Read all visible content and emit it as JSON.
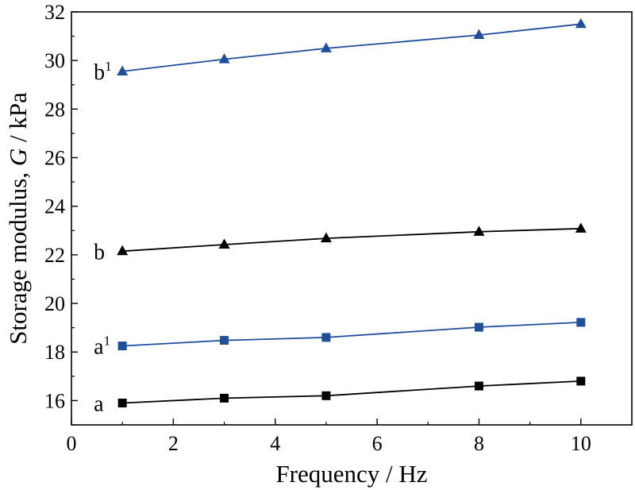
{
  "chart_data": {
    "type": "line",
    "title": "",
    "xlabel": "Frequency / Hz",
    "ylabel": {
      "prefix": "Storage modulus, ",
      "symbol": "G",
      "suffix": " / kPa"
    },
    "xlim": [
      0,
      11
    ],
    "ylim": [
      15,
      32
    ],
    "xticks": [
      0,
      2,
      4,
      6,
      8,
      10
    ],
    "yticks": [
      16,
      18,
      20,
      22,
      24,
      26,
      28,
      30,
      32
    ],
    "x": [
      1,
      3,
      5,
      8,
      10
    ],
    "grid": false,
    "legend": "none",
    "series": [
      {
        "name": "a",
        "label_sup": "",
        "marker": "square",
        "color": "#000000",
        "values": [
          15.9,
          16.1,
          16.2,
          16.6,
          16.8
        ]
      },
      {
        "name": "a",
        "label_sup": "1",
        "marker": "square",
        "color": "#1f4e9c",
        "values": [
          18.25,
          18.48,
          18.6,
          19.02,
          19.22
        ]
      },
      {
        "name": "b",
        "label_sup": "",
        "marker": "triangle",
        "color": "#000000",
        "values": [
          22.15,
          22.42,
          22.68,
          22.95,
          23.08
        ]
      },
      {
        "name": "b",
        "label_sup": "1",
        "marker": "triangle",
        "color": "#1f4e9c",
        "values": [
          29.55,
          30.05,
          30.5,
          31.05,
          31.5
        ]
      }
    ]
  }
}
